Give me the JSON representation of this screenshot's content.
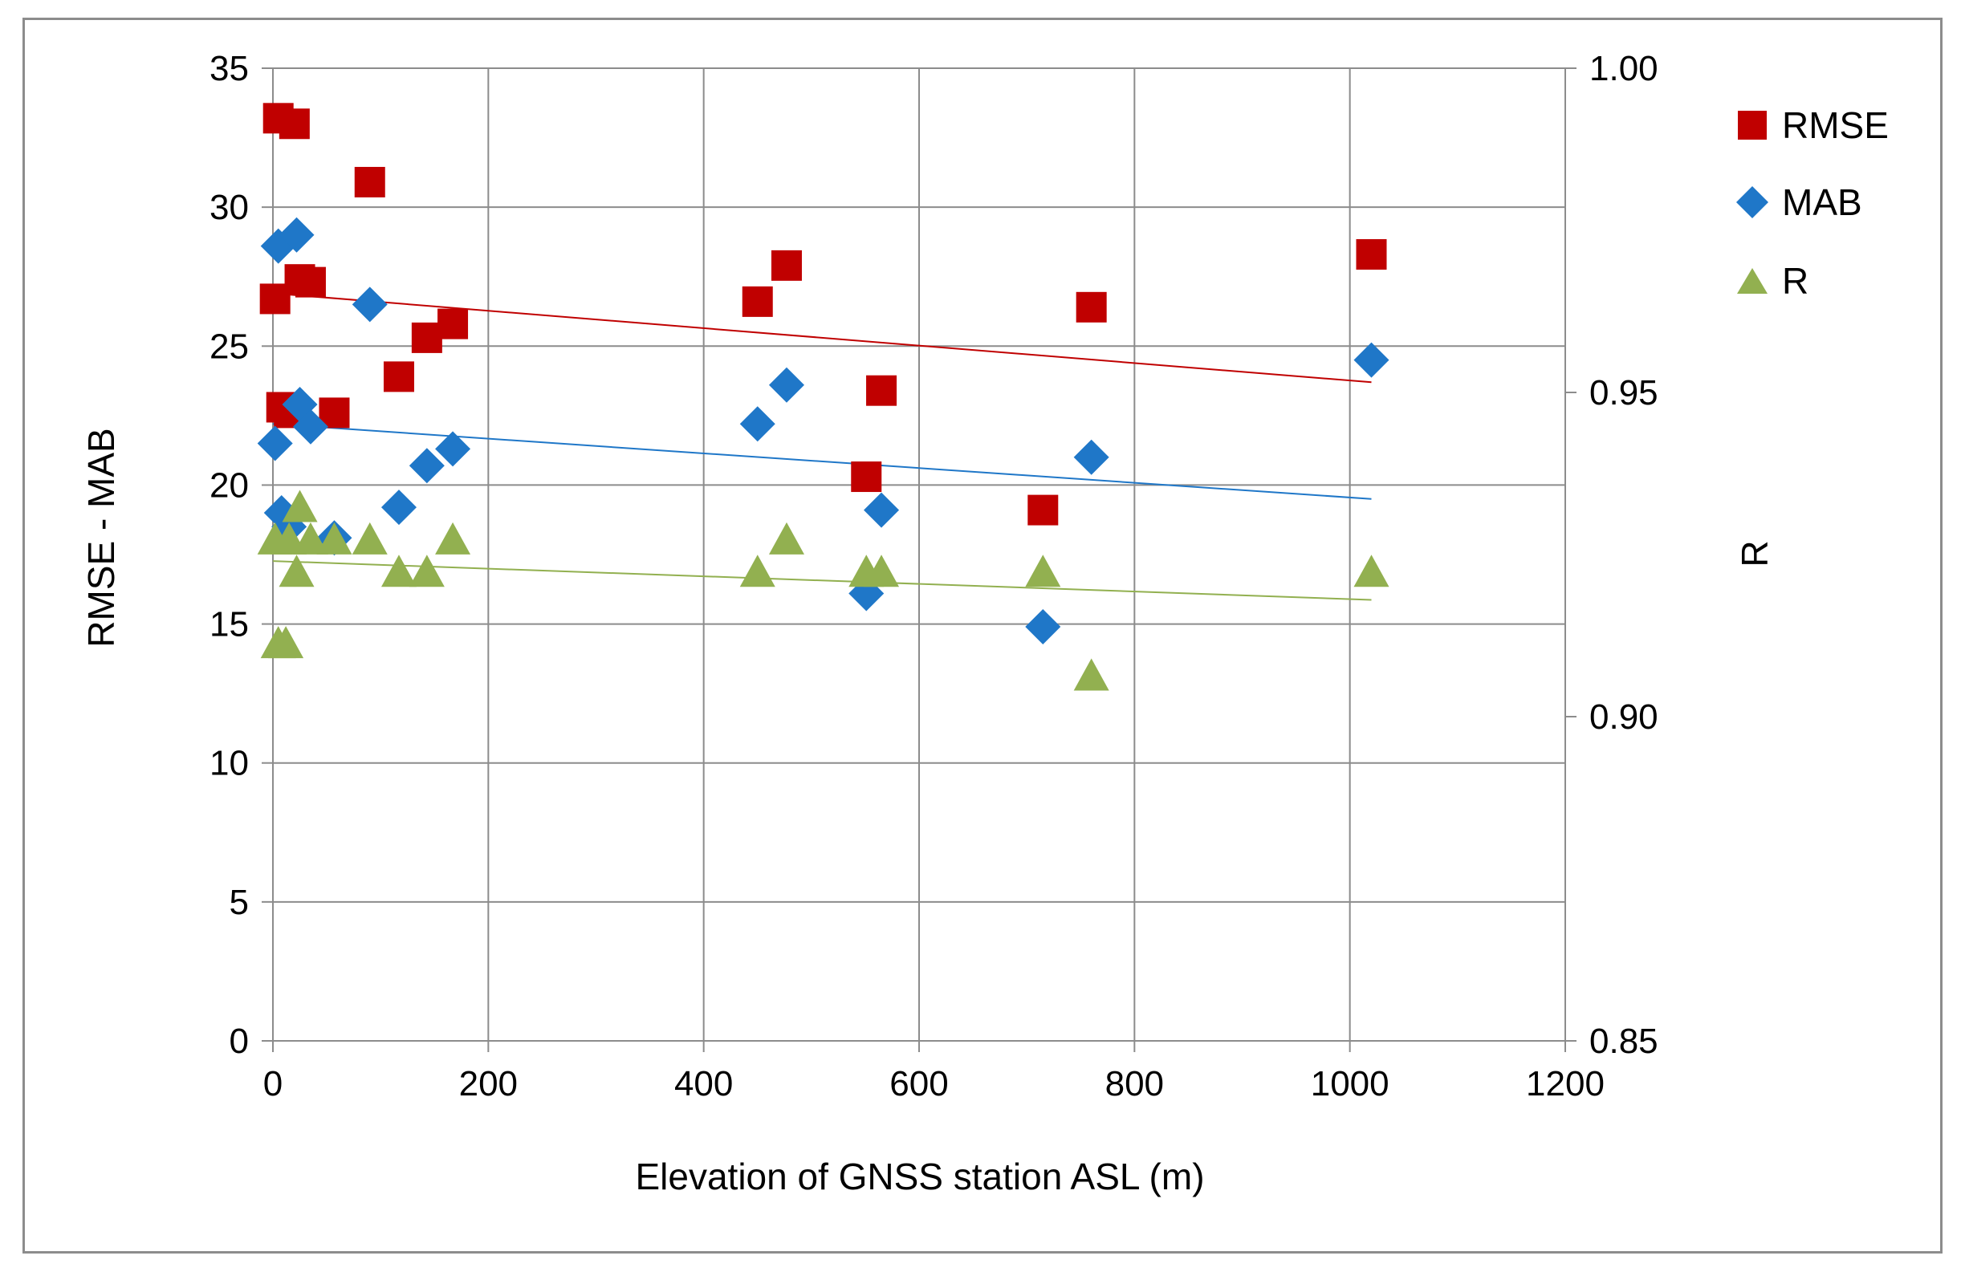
{
  "chart_data": {
    "type": "scatter",
    "title": "",
    "xlabel": "Elevation of GNSS station ASL (m)",
    "ylabel": "RMSE - MAB",
    "y2label": "R",
    "xlim": [
      0,
      1200
    ],
    "ylim": [
      0,
      35
    ],
    "y2lim": [
      0.85,
      1.0
    ],
    "x_ticks": [
      0,
      200,
      400,
      600,
      800,
      1000,
      1200
    ],
    "y_ticks": [
      0,
      5,
      10,
      15,
      20,
      25,
      30,
      35
    ],
    "y2_ticks": [
      0.85,
      0.9,
      0.95,
      1.0
    ],
    "x_tick_labels": [
      "0",
      "200",
      "400",
      "600",
      "800",
      "1000",
      "1200"
    ],
    "y_tick_labels": [
      "0",
      "5",
      "10",
      "15",
      "20",
      "25",
      "30",
      "35"
    ],
    "y2_tick_labels": [
      "0.85",
      "0.90",
      "0.95",
      "1.00"
    ],
    "grid": true,
    "legend_position": "top-right",
    "series": [
      {
        "name": "RMSE",
        "axis": "left",
        "marker": "square",
        "color": "#c00000",
        "points": [
          [
            5,
            33.2
          ],
          [
            20,
            33
          ],
          [
            2,
            26.7
          ],
          [
            25,
            27.4
          ],
          [
            35,
            27.3
          ],
          [
            8,
            22.8
          ],
          [
            15,
            22.6
          ],
          [
            57,
            22.6
          ],
          [
            90,
            30.9
          ],
          [
            117,
            23.9
          ],
          [
            143,
            25.3
          ],
          [
            167,
            25.8
          ],
          [
            450,
            26.6
          ],
          [
            477,
            27.9
          ],
          [
            551,
            20.3
          ],
          [
            565,
            23.4
          ],
          [
            715,
            19.1
          ],
          [
            760,
            26.4
          ],
          [
            1020,
            28.3
          ]
        ],
        "trend": [
          [
            0,
            26.9
          ],
          [
            1020,
            23.7
          ]
        ]
      },
      {
        "name": "MAB",
        "axis": "left",
        "marker": "diamond",
        "color": "#1f77c8",
        "points": [
          [
            5,
            28.6
          ],
          [
            22,
            29
          ],
          [
            2,
            21.5
          ],
          [
            25,
            22.9
          ],
          [
            35,
            22.1
          ],
          [
            8,
            19
          ],
          [
            15,
            18.5
          ],
          [
            57,
            18.1
          ],
          [
            90,
            26.5
          ],
          [
            117,
            19.2
          ],
          [
            143,
            20.7
          ],
          [
            167,
            21.3
          ],
          [
            450,
            22.2
          ],
          [
            477,
            23.6
          ],
          [
            551,
            16.1
          ],
          [
            565,
            19.1
          ],
          [
            715,
            14.9
          ],
          [
            760,
            21
          ],
          [
            1020,
            24.5
          ]
        ],
        "trend": [
          [
            0,
            22.2
          ],
          [
            1020,
            19.5
          ]
        ]
      },
      {
        "name": "R",
        "axis": "right",
        "marker": "triangle",
        "color": "#92b050",
        "points": [
          [
            5,
            0.911
          ],
          [
            12,
            0.911
          ],
          [
            2,
            0.927
          ],
          [
            15,
            0.927
          ],
          [
            22,
            0.922
          ],
          [
            25,
            0.932
          ],
          [
            35,
            0.927
          ],
          [
            57,
            0.927
          ],
          [
            90,
            0.927
          ],
          [
            117,
            0.922
          ],
          [
            143,
            0.922
          ],
          [
            167,
            0.927
          ],
          [
            450,
            0.922
          ],
          [
            477,
            0.927
          ],
          [
            551,
            0.922
          ],
          [
            565,
            0.922
          ],
          [
            715,
            0.922
          ],
          [
            760,
            0.906
          ],
          [
            1020,
            0.922
          ]
        ],
        "trend": [
          [
            0,
            0.924
          ],
          [
            1020,
            0.918
          ]
        ]
      }
    ]
  }
}
